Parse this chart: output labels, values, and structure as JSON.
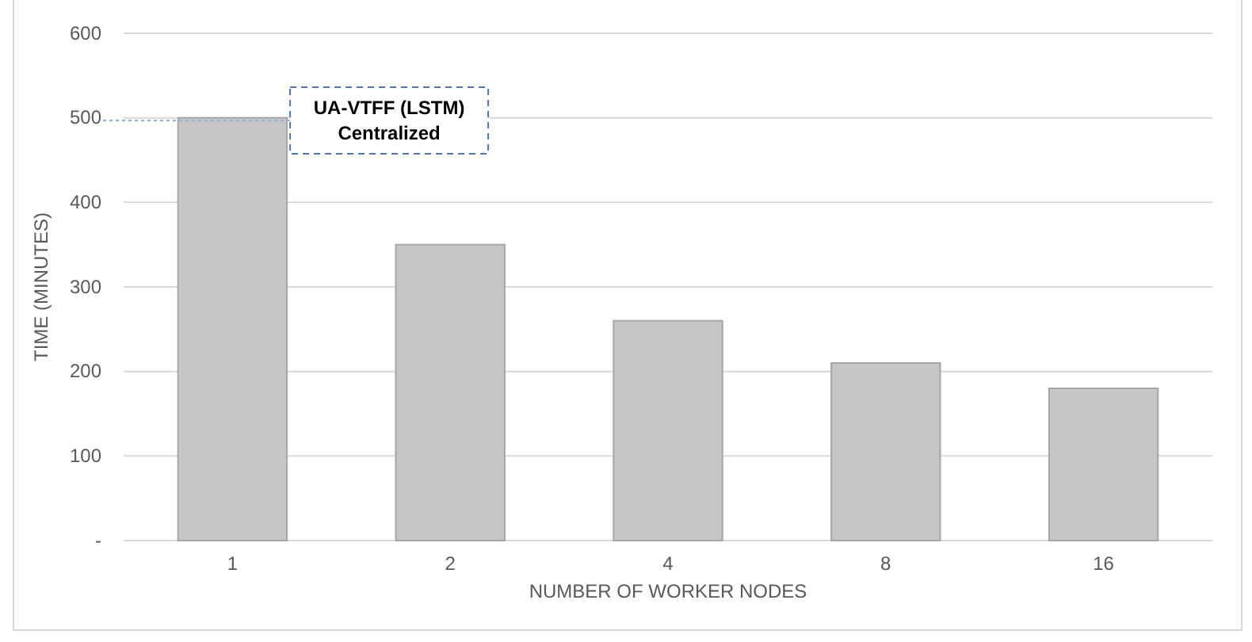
{
  "chart_data": {
    "type": "bar",
    "xlabel": "NUMBER OF WORKER NODES",
    "ylabel": "TIME  (MINUTES)",
    "categories": [
      "1",
      "2",
      "4",
      "8",
      "16"
    ],
    "values": [
      500,
      350,
      260,
      210,
      180
    ],
    "color": "#c6c6c6",
    "ylim": [
      0,
      600
    ],
    "yticks": [
      {
        "value": 0,
        "label": "-"
      },
      100,
      200,
      300,
      400,
      500,
      600
    ],
    "grid": "y",
    "annotations": [
      "UA-VTFF (LSTM)\nCentralized"
    ]
  }
}
